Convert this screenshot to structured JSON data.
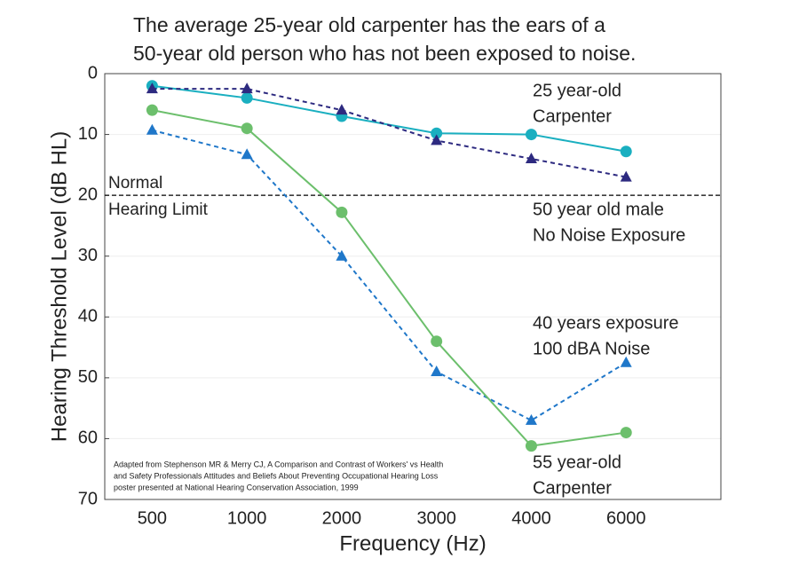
{
  "chart_data": {
    "type": "line",
    "title": [
      "The average 25-year old carpenter has the ears of a",
      "50-year old person who has not been exposed to noise."
    ],
    "x_label": "Frequency (Hz)",
    "y_label": "Hearing Threshold Level (dB HL)",
    "categories": [
      "500",
      "1000",
      "2000",
      "3000",
      "4000",
      "6000"
    ],
    "ylim": [
      0,
      70
    ],
    "y_inverted": true,
    "yticks": [
      0,
      10,
      20,
      30,
      40,
      50,
      60,
      70
    ],
    "grid": true,
    "reference_line": {
      "value": 20,
      "label": [
        "Normal",
        "Hearing Limit"
      ]
    },
    "note": [
      "Adapted from Stephenson MR & Merry CJ, A Comparison and Contrast of Workers' vs Health",
      "and Safety Professionals Attitudes and Beliefs About Preventing Occupational Hearing Loss",
      "poster presented at National Hearing Conservation Association, 1999"
    ],
    "series": [
      {
        "name": [
          "25 year-old",
          "Carpenter"
        ],
        "color": "#1aafc0",
        "marker": "circle",
        "dashed": false,
        "values": [
          2,
          4,
          7,
          9.8,
          10,
          12.8
        ]
      },
      {
        "name": [
          "50 year old male",
          "No Noise Exposure"
        ],
        "color": "#2d2a80",
        "marker": "triangle",
        "dashed": true,
        "values": [
          2.5,
          2.5,
          6,
          11,
          14,
          17
        ]
      },
      {
        "name": [
          "40 years exposure",
          "100 dBA Noise"
        ],
        "color": "#1f77c9",
        "marker": "triangle",
        "dashed": true,
        "values": [
          9.3,
          13.3,
          30,
          49,
          57,
          47.5
        ]
      },
      {
        "name": [
          "55 year-old",
          "Carpenter"
        ],
        "color": "#6cbf6c",
        "marker": "circle",
        "dashed": false,
        "values": [
          6,
          9,
          22.8,
          44,
          61.2,
          59
        ]
      }
    ]
  }
}
